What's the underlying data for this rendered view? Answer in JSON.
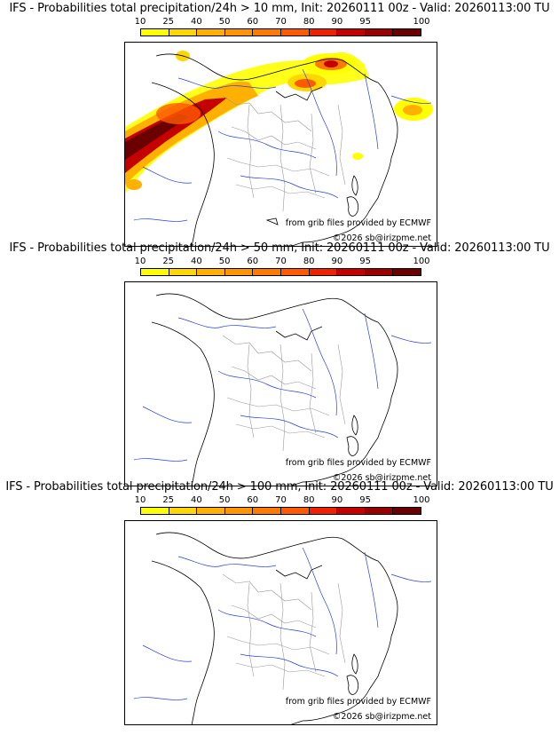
{
  "colorbar": {
    "ticks": [
      "10",
      "25",
      "40",
      "50",
      "60",
      "70",
      "80",
      "90",
      "95",
      "100"
    ],
    "colors": [
      "#ffff00",
      "#ffd700",
      "#ffb000",
      "#ff9500",
      "#ff7a00",
      "#ff5a00",
      "#ee2200",
      "#c40000",
      "#9a0000",
      "#6a0000"
    ]
  },
  "panels": [
    {
      "title": "IFS - Probabilities total precipitation/24h > 10 mm, Init: 20260111 00z - Valid: 20260113:00 TU",
      "credit_grib": "from grib files provided by ECMWF",
      "credit_copyright": "©2026 sb@irizpme.net",
      "has_precip": true
    },
    {
      "title": "IFS - Probabilities total precipitation/24h > 50 mm, Init: 20260111 00z - Valid: 20260113:00 TU",
      "credit_grib": "from grib files provided by ECMWF",
      "credit_copyright": "©2026 sb@irizpme.net",
      "has_precip": false
    },
    {
      "title": "IFS - Probabilities total precipitation/24h > 100 mm, Init: 20260111 00z - Valid: 20260113:00 TU",
      "credit_grib": "from grib files provided by ECMWF",
      "credit_copyright": "©2026 sb@irizpme.net",
      "has_precip": false
    }
  ]
}
